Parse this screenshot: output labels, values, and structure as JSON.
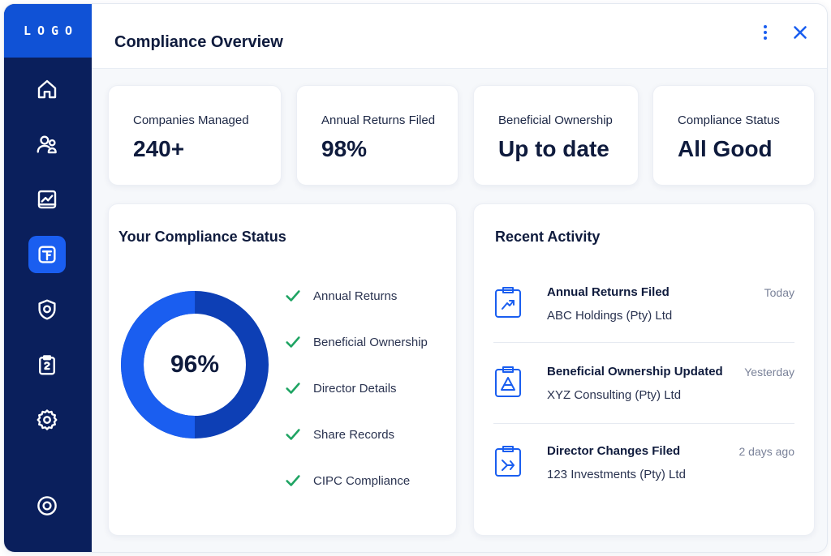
{
  "sidebar": {
    "logo": "LOGO",
    "nav": [
      {
        "icon": "home-icon"
      },
      {
        "icon": "users-icon"
      },
      {
        "icon": "chart-folder-icon"
      },
      {
        "icon": "document-icon",
        "active": true
      },
      {
        "icon": "shield-icon"
      },
      {
        "icon": "clipboard-icon"
      },
      {
        "icon": "settings-icon"
      },
      {
        "icon": "target-icon"
      }
    ]
  },
  "header": {
    "title": "Compliance Overview",
    "menu_icon": "more-vertical-icon",
    "close_icon": "close-icon"
  },
  "stats": [
    {
      "label": "Companies Managed",
      "value": "240+"
    },
    {
      "label": "Annual Returns Filed",
      "value": "98%"
    },
    {
      "label": "Beneficial Ownership",
      "value": "Up to date"
    },
    {
      "label": "Compliance Status",
      "value": "All Good"
    }
  ],
  "compliance": {
    "title": "Your Compliance Status",
    "percent_label": "96%",
    "percent": 96,
    "items": [
      "Annual Returns",
      "Beneficial Ownership",
      "Director Details",
      "Share Records",
      "CIPC Compliance"
    ]
  },
  "activity": {
    "title": "Recent Activity",
    "items": [
      {
        "title": "Annual Returns Filed",
        "company": "ABC Holdings (Pty) Ltd",
        "time": "Today"
      },
      {
        "title": "Beneficial Ownership Updated",
        "company": "XYZ Consulting (Pty) Ltd",
        "time": "Yesterday"
      },
      {
        "title": "Director Changes Filed",
        "company": "123 Investments (Pty) Ltd",
        "time": "2 days ago"
      }
    ]
  },
  "colors": {
    "sidebar": "#0a1f5c",
    "accent": "#1a5ef0",
    "donut_dark": "#0d3fb5",
    "donut_light": "#1a5ef0",
    "check": "#1fa463"
  }
}
